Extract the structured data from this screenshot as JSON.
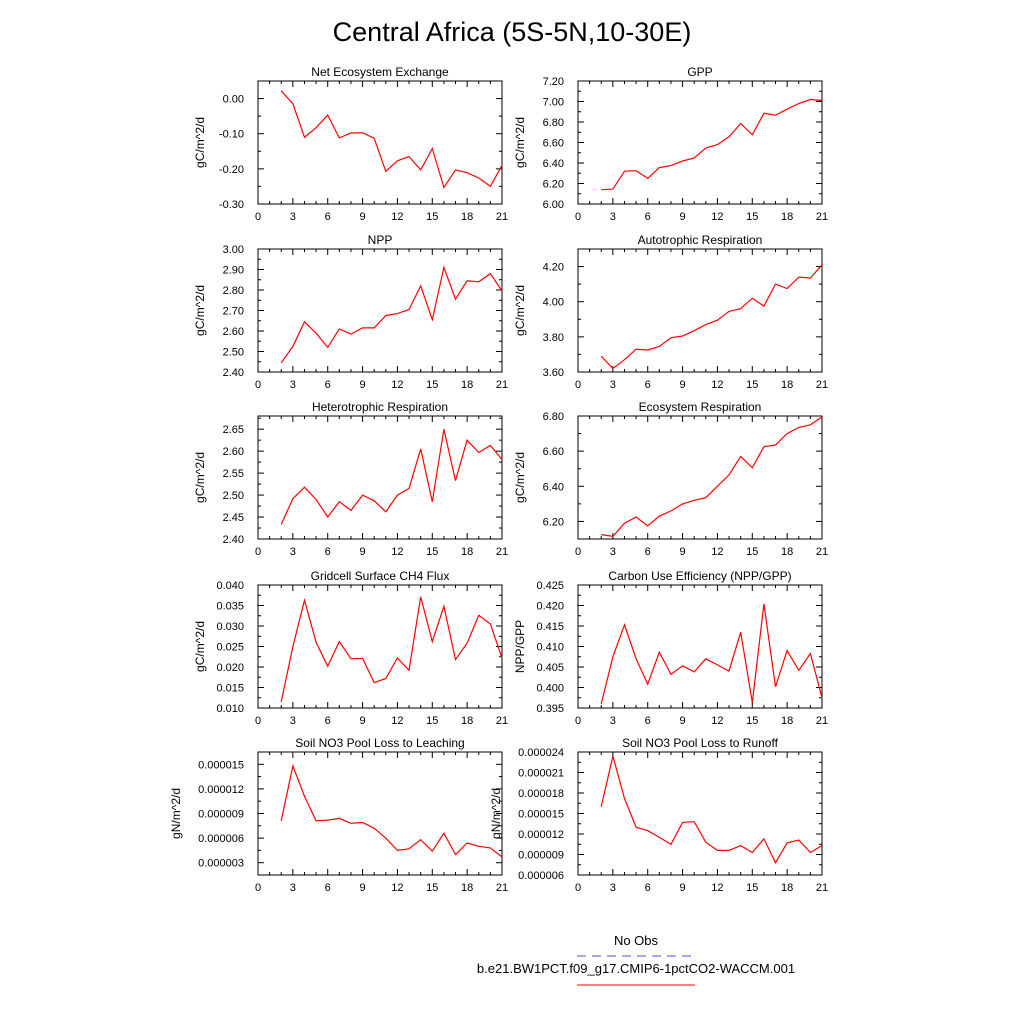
{
  "figure": {
    "title": "Central Africa (5S-5N,10-30E)",
    "line_color": "#ff0000",
    "obs_color": "#5050c8"
  },
  "legend": {
    "obs_label": "No Obs",
    "model_label": "b.e21.BW1PCT.f09_g17.CMIP6-1pctCO2-WACCM.001"
  },
  "chart_data": [
    {
      "type": "line",
      "title": "Net Ecosystem Exchange",
      "ylabel": "gC/m^2/d",
      "xlim": [
        0,
        21
      ],
      "xticks": [
        "0",
        "3",
        "6",
        "9",
        "12",
        "15",
        "18",
        "21"
      ],
      "ylim": [
        -0.3,
        0.05
      ],
      "yticks": [
        "-0.30",
        "-0.20",
        "-0.10",
        "0.00"
      ],
      "ytick_values": [
        -0.3,
        -0.2,
        -0.1,
        0.0
      ],
      "x": [
        2,
        3,
        4,
        5,
        6,
        7,
        8,
        9,
        10,
        11,
        12,
        13,
        14,
        15,
        16,
        17,
        18,
        19,
        20,
        21
      ],
      "y": [
        0.022,
        -0.015,
        -0.11,
        -0.083,
        -0.047,
        -0.112,
        -0.098,
        -0.097,
        -0.113,
        -0.207,
        -0.177,
        -0.165,
        -0.203,
        -0.142,
        -0.253,
        -0.203,
        -0.211,
        -0.226,
        -0.25,
        -0.19
      ]
    },
    {
      "type": "line",
      "title": "GPP",
      "ylabel": "gC/m^2/d",
      "xlim": [
        0,
        21
      ],
      "xticks": [
        "0",
        "3",
        "6",
        "9",
        "12",
        "15",
        "18",
        "21"
      ],
      "ylim": [
        6.0,
        7.2
      ],
      "yticks": [
        "6.00",
        "6.20",
        "6.40",
        "6.60",
        "6.80",
        "7.00",
        "7.20"
      ],
      "ytick_values": [
        6.0,
        6.2,
        6.4,
        6.6,
        6.8,
        7.0,
        7.2
      ],
      "x": [
        2,
        3,
        4,
        5,
        6,
        7,
        8,
        9,
        10,
        11,
        12,
        13,
        14,
        15,
        16,
        17,
        18,
        19,
        20,
        21
      ],
      "y": [
        6.14,
        6.145,
        6.32,
        6.325,
        6.25,
        6.355,
        6.375,
        6.42,
        6.45,
        6.545,
        6.58,
        6.655,
        6.785,
        6.675,
        6.885,
        6.865,
        6.925,
        6.98,
        7.02,
        7.01
      ]
    },
    {
      "type": "line",
      "title": "NPP",
      "ylabel": "gC/m^2/d",
      "xlim": [
        0,
        21
      ],
      "xticks": [
        "0",
        "3",
        "6",
        "9",
        "12",
        "15",
        "18",
        "21"
      ],
      "ylim": [
        2.4,
        3.0
      ],
      "yticks": [
        "2.40",
        "2.50",
        "2.60",
        "2.70",
        "2.80",
        "2.90",
        "3.00"
      ],
      "ytick_values": [
        2.4,
        2.5,
        2.6,
        2.7,
        2.8,
        2.9,
        3.0
      ],
      "x": [
        2,
        3,
        4,
        5,
        6,
        7,
        8,
        9,
        10,
        11,
        12,
        13,
        14,
        15,
        16,
        17,
        18,
        19,
        20,
        21
      ],
      "y": [
        2.445,
        2.525,
        2.645,
        2.59,
        2.52,
        2.61,
        2.585,
        2.615,
        2.615,
        2.675,
        2.685,
        2.705,
        2.82,
        2.655,
        2.91,
        2.755,
        2.845,
        2.84,
        2.88,
        2.795
      ]
    },
    {
      "type": "line",
      "title": "Autotrophic Respiration",
      "ylabel": "gC/m^2/d",
      "xlim": [
        0,
        21
      ],
      "xticks": [
        "0",
        "3",
        "6",
        "9",
        "12",
        "15",
        "18",
        "21"
      ],
      "ylim": [
        3.6,
        4.3
      ],
      "yticks": [
        "3.60",
        "3.80",
        "4.00",
        "4.20"
      ],
      "ytick_values": [
        3.6,
        3.8,
        4.0,
        4.2
      ],
      "x": [
        2,
        3,
        4,
        5,
        6,
        7,
        8,
        9,
        10,
        11,
        12,
        13,
        14,
        15,
        16,
        17,
        18,
        19,
        20,
        21
      ],
      "y": [
        3.69,
        3.62,
        3.67,
        3.73,
        3.725,
        3.745,
        3.795,
        3.805,
        3.835,
        3.87,
        3.895,
        3.945,
        3.96,
        4.02,
        3.975,
        4.1,
        4.075,
        4.14,
        4.135,
        4.21
      ]
    },
    {
      "type": "line",
      "title": "Heterotrophic Respiration",
      "ylabel": "gC/m^2/d",
      "xlim": [
        0,
        21
      ],
      "xticks": [
        "0",
        "3",
        "6",
        "9",
        "12",
        "15",
        "18",
        "21"
      ],
      "ylim": [
        2.4,
        2.68
      ],
      "yticks": [
        "2.40",
        "2.45",
        "2.50",
        "2.55",
        "2.60",
        "2.65"
      ],
      "ytick_values": [
        2.4,
        2.45,
        2.5,
        2.55,
        2.6,
        2.65
      ],
      "x": [
        2,
        3,
        4,
        5,
        6,
        7,
        8,
        9,
        10,
        11,
        12,
        13,
        14,
        15,
        16,
        17,
        18,
        19,
        20,
        21
      ],
      "y": [
        2.433,
        2.492,
        2.518,
        2.49,
        2.45,
        2.485,
        2.465,
        2.5,
        2.487,
        2.462,
        2.5,
        2.515,
        2.605,
        2.485,
        2.65,
        2.533,
        2.625,
        2.597,
        2.613,
        2.581
      ]
    },
    {
      "type": "line",
      "title": "Ecosystem Respiration",
      "ylabel": "gC/m^2/d",
      "xlim": [
        0,
        21
      ],
      "xticks": [
        "0",
        "3",
        "6",
        "9",
        "12",
        "15",
        "18",
        "21"
      ],
      "ylim": [
        6.1,
        6.8
      ],
      "yticks": [
        "6.20",
        "6.40",
        "6.60",
        "6.80"
      ],
      "ytick_values": [
        6.2,
        6.4,
        6.6,
        6.8
      ],
      "x": [
        2,
        3,
        4,
        5,
        6,
        7,
        8,
        9,
        10,
        11,
        12,
        13,
        14,
        15,
        16,
        17,
        18,
        19,
        20,
        21
      ],
      "y": [
        6.125,
        6.115,
        6.19,
        6.225,
        6.175,
        6.23,
        6.26,
        6.3,
        6.32,
        6.335,
        6.4,
        6.465,
        6.57,
        6.505,
        6.625,
        6.635,
        6.7,
        6.735,
        6.75,
        6.795
      ]
    },
    {
      "type": "line",
      "title": "Gridcell Surface CH4 Flux",
      "ylabel": "gC/m^2/d",
      "xlim": [
        0,
        21
      ],
      "xticks": [
        "0",
        "3",
        "6",
        "9",
        "12",
        "15",
        "18",
        "21"
      ],
      "ylim": [
        0.01,
        0.04
      ],
      "yticks": [
        "0.010",
        "0.015",
        "0.020",
        "0.025",
        "0.030",
        "0.035",
        "0.040"
      ],
      "ytick_values": [
        0.01,
        0.015,
        0.02,
        0.025,
        0.03,
        0.035,
        0.04
      ],
      "x": [
        2,
        3,
        4,
        5,
        6,
        7,
        8,
        9,
        10,
        11,
        12,
        13,
        14,
        15,
        16,
        17,
        18,
        19,
        20,
        21
      ],
      "y": [
        0.0115,
        0.025,
        0.0363,
        0.026,
        0.0202,
        0.0262,
        0.022,
        0.0221,
        0.0162,
        0.0172,
        0.0222,
        0.0192,
        0.0371,
        0.0262,
        0.0348,
        0.0218,
        0.0258,
        0.0326,
        0.0305,
        0.0222
      ]
    },
    {
      "type": "line",
      "title": "Carbon Use Efficiency (NPP/GPP)",
      "ylabel": "NPP/GPP",
      "xlim": [
        0,
        21
      ],
      "xticks": [
        "0",
        "3",
        "6",
        "9",
        "12",
        "15",
        "18",
        "21"
      ],
      "ylim": [
        0.395,
        0.425
      ],
      "yticks": [
        "0.395",
        "0.400",
        "0.405",
        "0.410",
        "0.415",
        "0.420",
        "0.425"
      ],
      "ytick_values": [
        0.395,
        0.4,
        0.405,
        0.41,
        0.415,
        0.42,
        0.425
      ],
      "x": [
        2,
        3,
        4,
        5,
        6,
        7,
        8,
        9,
        10,
        11,
        12,
        13,
        14,
        15,
        16,
        17,
        18,
        19,
        20,
        21
      ],
      "y": [
        0.396,
        0.4075,
        0.4153,
        0.407,
        0.4008,
        0.4086,
        0.4032,
        0.4053,
        0.4038,
        0.407,
        0.4055,
        0.404,
        0.4135,
        0.3963,
        0.4204,
        0.4002,
        0.409,
        0.4042,
        0.4083,
        0.3975
      ]
    },
    {
      "type": "line",
      "title": "Soil NO3 Pool Loss to Leaching",
      "ylabel": "gN/m^2/d",
      "xlim": [
        0,
        21
      ],
      "xticks": [
        "0",
        "3",
        "6",
        "9",
        "12",
        "15",
        "18",
        "21"
      ],
      "ylim": [
        1.5e-06,
        1.65e-05
      ],
      "yticks": [
        "0.000003",
        "0.000006",
        "0.000009",
        "0.000012",
        "0.000015"
      ],
      "ytick_values": [
        3e-06,
        6e-06,
        9e-06,
        1.2e-05,
        1.5e-05
      ],
      "x": [
        2,
        3,
        4,
        5,
        6,
        7,
        8,
        9,
        10,
        11,
        12,
        13,
        14,
        15,
        16,
        17,
        18,
        19,
        20,
        21
      ],
      "y": [
        8.1e-06,
        1.48e-05,
        1.11e-05,
        8.1e-06,
        8.2e-06,
        8.4e-06,
        7.8e-06,
        7.9e-06,
        7.2e-06,
        6e-06,
        4.5e-06,
        4.7e-06,
        5.8e-06,
        4.4e-06,
        6.6e-06,
        4e-06,
        5.4e-06,
        5e-06,
        4.8e-06,
        3.7e-06
      ]
    },
    {
      "type": "line",
      "title": "Soil NO3 Pool Loss to Runoff",
      "ylabel": "gN/m^2/d",
      "xlim": [
        0,
        21
      ],
      "xticks": [
        "0",
        "3",
        "6",
        "9",
        "12",
        "15",
        "18",
        "21"
      ],
      "ylim": [
        6e-06,
        2.4e-05
      ],
      "yticks": [
        "0.000006",
        "0.000009",
        "0.000012",
        "0.000015",
        "0.000018",
        "0.000021",
        "0.000024"
      ],
      "ytick_values": [
        6e-06,
        9e-06,
        1.2e-05,
        1.5e-05,
        1.8e-05,
        2.1e-05,
        2.4e-05
      ],
      "x": [
        2,
        3,
        4,
        5,
        6,
        7,
        8,
        9,
        10,
        11,
        12,
        13,
        14,
        15,
        16,
        17,
        18,
        19,
        20,
        21
      ],
      "y": [
        1.6e-05,
        2.34e-05,
        1.72e-05,
        1.3e-05,
        1.25e-05,
        1.15e-05,
        1.05e-05,
        1.37e-05,
        1.38e-05,
        1.08e-05,
        9.6e-06,
        9.6e-06,
        1.03e-05,
        9.3e-06,
        1.13e-05,
        7.8e-06,
        1.07e-05,
        1.11e-05,
        9.3e-06,
        1.03e-05
      ]
    }
  ]
}
